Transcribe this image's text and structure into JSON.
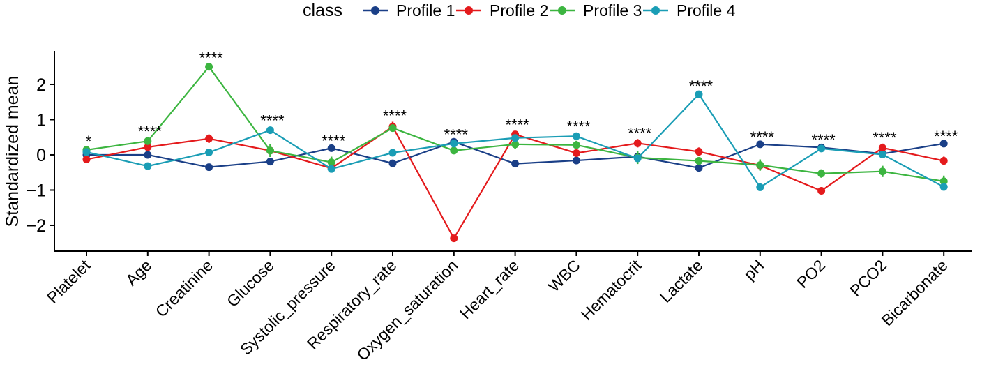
{
  "chart_data": {
    "type": "line",
    "title": "",
    "xlabel": "",
    "ylabel": "Standardized mean",
    "ylim": [
      -2.75,
      2.95
    ],
    "yticks": [
      -2,
      -1,
      0,
      1,
      2
    ],
    "legend": {
      "title": "class",
      "position": "top"
    },
    "categories": [
      "Platelet",
      "Age",
      "Creatinine",
      "Glucose",
      "Systolic_pressure",
      "Respiratory_rate",
      "Oxygen_saturation",
      "Heart_rate",
      "WBC",
      "Hematocrit",
      "Lactate",
      "pH",
      "PO2",
      "PCO2",
      "Bicarbonate"
    ],
    "significance": [
      "*",
      "****",
      "****",
      "****",
      "****",
      "****",
      "****",
      "****",
      "****",
      "****",
      "****",
      "****",
      "****",
      "****",
      "****"
    ],
    "series": [
      {
        "name": "Profile 1",
        "color": "#1a3f87",
        "values": [
          0.0,
          0.0,
          -0.35,
          -0.19,
          0.19,
          -0.24,
          0.37,
          -0.25,
          -0.16,
          -0.05,
          -0.37,
          0.3,
          0.21,
          0.03,
          0.32
        ],
        "errors": [
          0.04,
          0.04,
          0.04,
          0.04,
          0.04,
          0.04,
          0.04,
          0.04,
          0.04,
          0.04,
          0.04,
          0.04,
          0.04,
          0.04,
          0.04
        ]
      },
      {
        "name": "Profile 2",
        "color": "#e41a1c",
        "values": [
          -0.13,
          0.22,
          0.46,
          0.12,
          -0.38,
          0.8,
          -2.37,
          0.58,
          0.05,
          0.33,
          0.09,
          -0.3,
          -1.02,
          0.2,
          -0.17
        ],
        "errors": [
          0.1,
          0.1,
          0.12,
          0.1,
          0.1,
          0.14,
          0.08,
          0.1,
          0.1,
          0.12,
          0.12,
          0.12,
          0.08,
          0.12,
          0.12
        ]
      },
      {
        "name": "Profile 3",
        "color": "#3cb540",
        "values": [
          0.14,
          0.39,
          2.5,
          0.12,
          -0.21,
          0.76,
          0.12,
          0.3,
          0.28,
          -0.08,
          -0.17,
          -0.29,
          -0.53,
          -0.47,
          -0.75
        ],
        "errors": [
          0.08,
          0.1,
          0.08,
          0.18,
          0.16,
          0.1,
          0.1,
          0.14,
          0.12,
          0.18,
          0.1,
          0.16,
          0.12,
          0.16,
          0.16
        ]
      },
      {
        "name": "Profile 4",
        "color": "#1a9db5",
        "values": [
          0.08,
          -0.32,
          0.07,
          0.7,
          -0.4,
          0.06,
          0.32,
          0.48,
          0.53,
          -0.1,
          1.72,
          -0.92,
          0.18,
          0.01,
          -0.91
        ],
        "errors": [
          0.06,
          0.08,
          0.06,
          0.1,
          0.08,
          0.08,
          0.06,
          0.08,
          0.1,
          0.08,
          0.06,
          0.08,
          0.08,
          0.08,
          0.06
        ]
      }
    ]
  }
}
